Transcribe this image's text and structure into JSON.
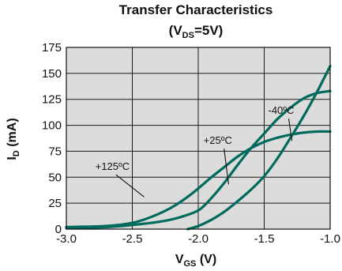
{
  "chart_data": {
    "type": "line",
    "title": "Transfer Characteristics",
    "subtitle": {
      "prefix": "(V",
      "subscript": "DS",
      "suffix": "=5V)"
    },
    "xlabel": {
      "main": "V",
      "subscript": "GS",
      "suffix": " (V)"
    },
    "ylabel": {
      "main": "I",
      "subscript": "D",
      "suffix": " (mA)"
    },
    "xlim": [
      -3.0,
      -1.0
    ],
    "ylim": [
      0,
      175
    ],
    "x_ticks": [
      -3.0,
      -2.5,
      -2.0,
      -1.5,
      -1.0
    ],
    "x_tick_labels": [
      "-3.0",
      "-2.5",
      "-2.0",
      "-1.5",
      "-1.0"
    ],
    "y_ticks": [
      0,
      25,
      50,
      75,
      100,
      125,
      150,
      175
    ],
    "y_tick_labels": [
      "0",
      "25",
      "50",
      "75",
      "100",
      "125",
      "150",
      "175"
    ],
    "grid": true,
    "background_color": "#dcdcdc",
    "line_color": "#006b5c",
    "series": [
      {
        "name": "+125ºC",
        "x": [
          -3.0,
          -2.7,
          -2.5,
          -2.35,
          -2.2,
          -2.05,
          -1.9,
          -1.8,
          -1.7,
          -1.6,
          -1.5,
          -1.4,
          -1.3,
          -1.2,
          -1.1,
          -1.0
        ],
        "y": [
          2,
          3,
          6,
          12,
          21,
          34,
          50,
          60,
          70,
          78,
          84,
          88,
          91,
          93,
          94,
          94
        ]
      },
      {
        "name": "+25ºC",
        "x": [
          -3.0,
          -2.7,
          -2.5,
          -2.3,
          -2.15,
          -2.0,
          -1.9,
          -1.8,
          -1.7,
          -1.6,
          -1.5,
          -1.4,
          -1.3,
          -1.2,
          -1.1,
          -1.0
        ],
        "y": [
          1,
          2,
          4,
          7,
          11,
          18,
          30,
          45,
          62,
          78,
          92,
          106,
          117,
          126,
          131,
          133
        ]
      },
      {
        "name": "-40ºC",
        "x": [
          -2.08,
          -2.0,
          -1.9,
          -1.8,
          -1.7,
          -1.6,
          -1.5,
          -1.4,
          -1.3,
          -1.2,
          -1.1,
          -1.0
        ],
        "y": [
          0,
          3,
          9,
          17,
          27,
          38,
          51,
          68,
          88,
          109,
          132,
          157
        ]
      }
    ],
    "annotations": [
      {
        "text": "+125ºC",
        "label_at": [
          -2.78,
          57
        ],
        "arrow_to": [
          -2.41,
          31
        ]
      },
      {
        "text": "+25ºC",
        "label_at": [
          -1.96,
          82
        ],
        "arrow_to": [
          -1.77,
          43
        ]
      },
      {
        "text": "-40ºC",
        "label_at": [
          -1.47,
          111
        ],
        "arrow_to": [
          -1.29,
          85
        ]
      }
    ]
  }
}
